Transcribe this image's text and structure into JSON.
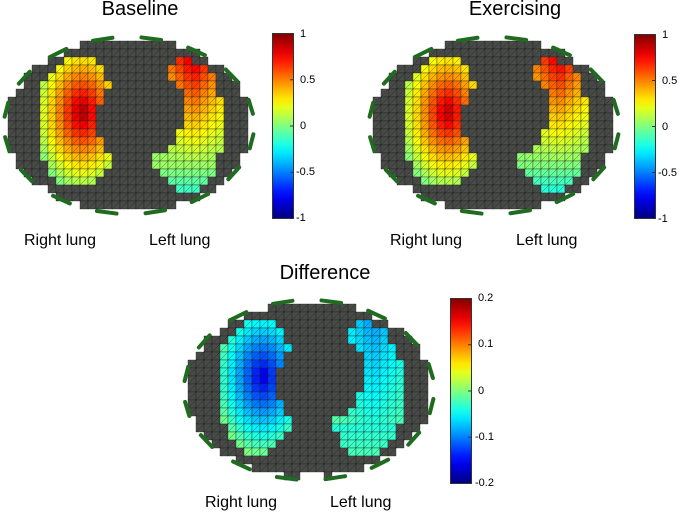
{
  "panels": [
    {
      "id": "baseline",
      "title": "Baseline",
      "right_label": "Right lung",
      "left_label": "Left lung",
      "colorbar": {
        "min": -1,
        "max": 1,
        "ticks": [
          "1",
          "0.5",
          "0",
          "-0.5",
          "-1"
        ]
      },
      "right_lung_peak": 0.92,
      "left_lung_peak": 0.85,
      "left_lung_base": -0.15
    },
    {
      "id": "exercising",
      "title": "Exercising",
      "right_label": "Right lung",
      "left_label": "Left lung",
      "colorbar": {
        "min": -1,
        "max": 1,
        "ticks": [
          "1",
          "0.5",
          "0",
          "-0.5",
          "-1"
        ]
      },
      "right_lung_peak": 0.88,
      "left_lung_peak": 0.82,
      "left_lung_base": -0.2
    },
    {
      "id": "difference",
      "title": "Difference",
      "right_label": "Right lung",
      "left_label": "Left lung",
      "colorbar": {
        "min": -0.2,
        "max": 0.2,
        "ticks": [
          "0.2",
          "0.1",
          "0",
          "-0.1",
          "-0.2"
        ]
      },
      "right_lung_peak": -0.16,
      "left_lung_peak": -0.09,
      "left_lung_base": -0.02
    }
  ],
  "colors": {
    "tissue": "#474a46",
    "mesh_line": "#1a1a1a",
    "electrode": "#1f6b1f"
  }
}
